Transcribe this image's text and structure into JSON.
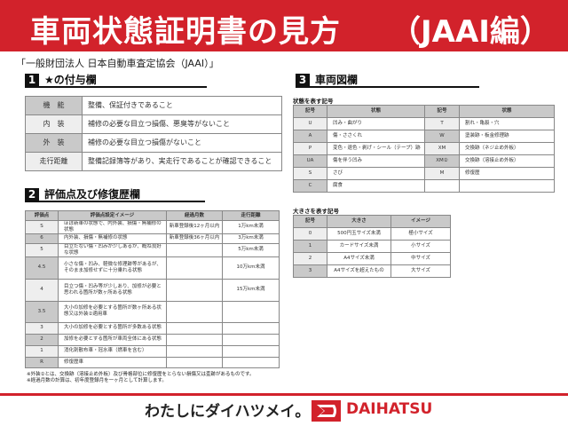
{
  "header": {
    "title": "車両状態証明書の見方",
    "title_suffix": "（JAAI編）",
    "organization": "「一般財団法人 日本自動車査定協会（JAAI）」"
  },
  "colors": {
    "brand_red": "#d2222b",
    "header_gray": "#c9c9c9"
  },
  "section1": {
    "number": "1",
    "title": "★の付与欄",
    "rows": [
      {
        "label": "機　能",
        "desc": "整備、保証付きであること"
      },
      {
        "label": "内　装",
        "desc": "補修の必要な目立つ損傷、悪臭等がないこと"
      },
      {
        "label": "外　装",
        "desc": "補修の必要な目立つ損傷がないこと"
      },
      {
        "label": "走行距離",
        "desc": "整備記録簿等があり、実走行であることが確認できること"
      }
    ]
  },
  "section2": {
    "number": "2",
    "title": "評価点及び修復歴欄",
    "headers": [
      "評価点",
      "評価点設定イメージ",
      "経過月数",
      "走行距離"
    ],
    "rows": [
      [
        "S",
        "ほぼ新車の状態で、内外装、損傷・無補修の状態",
        "新車登録後12ヶ月以内",
        "1万km未満"
      ],
      [
        "6",
        "内外装、損傷・無補修の状態",
        "新車登録後36ヶ月以内",
        "3万km未満"
      ],
      [
        "5",
        "目立たない傷・凹みが少しあるが、概ね良好な状態",
        "",
        "5万km未満"
      ],
      [
        "4.5",
        "小さな傷・凹み、軽微な修理跡等があるが、そのまま加修せずに十分乗れる状態",
        "",
        "10万km未満"
      ],
      [
        "4",
        "目立つ傷・凹み等が少しあり、加修が必要と思われる箇所が数ヶ所ある状態",
        "",
        "15万km未満"
      ],
      [
        "3.5",
        "大小の加修を必要とする箇所が数ヶ所ある状態又は外装②適用車",
        "",
        ""
      ],
      [
        "3",
        "大小の加修を必要とする箇所が多数ある状態",
        "",
        ""
      ],
      [
        "2",
        "加修を必要とする箇所が車両全体にある状態",
        "",
        ""
      ],
      [
        "1",
        "消化剤散布車・冠水車（燃車を含む）",
        "",
        ""
      ],
      [
        "R",
        "修復歴車",
        "",
        ""
      ]
    ]
  },
  "section3": {
    "number": "3",
    "title": "車両図欄",
    "condition_caption": "状態を表す記号",
    "condition_headers": [
      "記号",
      "状態",
      "記号",
      "状態"
    ],
    "condition_rows": [
      [
        "U",
        "凹み・曲がり",
        "T",
        "割れ・亀裂・穴"
      ],
      [
        "A",
        "傷・ささくれ",
        "W",
        "塗装跡・板金修理跡"
      ],
      [
        "P",
        "変色・退色・剥げ・シール（テープ）跡",
        "XM",
        "交換跡（ネジ止め外板）"
      ],
      [
        "UA",
        "傷を伴う凹み",
        "XM②",
        "交換跡（溶接止め外板）"
      ],
      [
        "S",
        "さび",
        "M",
        "修復歴"
      ],
      [
        "C",
        "腐食",
        "",
        ""
      ]
    ],
    "size_caption": "大きさを表す記号",
    "size_headers": [
      "記号",
      "大きさ",
      "イメージ"
    ],
    "size_rows": [
      [
        "0",
        "500円玉サイズ未満",
        "極小サイズ"
      ],
      [
        "1",
        "カードサイズ未満",
        "小サイズ"
      ],
      [
        "2",
        "A4サイズ未満",
        "中サイズ"
      ],
      [
        "3",
        "A4サイズを超えたもの",
        "大サイズ"
      ]
    ]
  },
  "notes": [
    "※外装②とは、交換跡（溶接止め外板）及び骨格部位に修復歴をとらない損傷又は歪跡があるものです。",
    "※経過月数の計算は、初年度登録月を一ヶ月として計算します。"
  ],
  "footer": {
    "slogan": "わたしにダイハツメイ。",
    "brand": "DAIHATSU",
    "brand_logo": "daihatsu-d-logo"
  }
}
